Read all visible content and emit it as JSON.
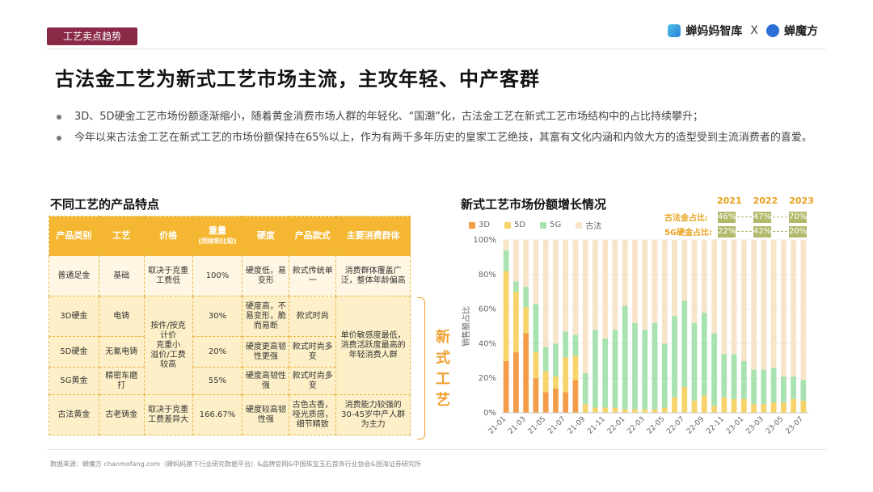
{
  "header": {
    "section_tag": "工艺卖点趋势",
    "brand_left": "蝉妈妈智库",
    "brand_sep": "X",
    "brand_right": "蝉魔方"
  },
  "title": "古法金工艺为新式工艺市场主流，主攻年轻、中产客群",
  "bullets": [
    "3D、5D硬金工艺市场份额逐渐缩小，随着黄金消费市场人群的年轻化、“国潮”化，古法金工艺在新式工艺市场结构中的占比持续攀升；",
    "今年以来古法金工艺在新式工艺的市场份额保持在65%以上，作为有两千多年历史的皇家工艺绝技，其富有文化内涵和内敛大方的造型受到主流消费者的喜爱。"
  ],
  "table": {
    "title": "不同工艺的产品特点",
    "headers": [
      "产品类别",
      "工艺",
      "价格",
      "重量",
      "(同体积比较)",
      "硬度",
      "产品款式",
      "主要消费群体"
    ],
    "rows": [
      [
        "普通足金",
        "基础",
        "取决于克重工费低",
        "100%",
        "硬度低，易变形",
        "款式传统单一",
        "消费群体覆盖广泛，整体年龄偏高"
      ],
      [
        "3D硬金",
        "电铸",
        "按件/按克计价\n克重小\n溢价/工费较高",
        "30%",
        "硬度高，不易变形，脆而易断",
        "款式时尚",
        "单价敏感度最低，消费活跃度最高的年轻消费人群"
      ],
      [
        "5D硬金",
        "无氰电铸",
        "",
        "20%",
        "硬度更高韧性更强",
        "款式时尚多变",
        ""
      ],
      [
        "5G黄金",
        "精密车磨打",
        "",
        "55%",
        "硬度高韧性强",
        "款式时尚多变",
        ""
      ],
      [
        "古法黄金",
        "古老铸金",
        "取决于克重工费差异大",
        "166.67%",
        "硬度较高韧性强",
        "古色古香，哑光质感，细节精致",
        "消费能力较强的30-45岁中产人群为主力"
      ]
    ],
    "bracket_label": "新式工艺"
  },
  "chart_section": {
    "title": "新式工艺市场份额增长情况",
    "years": [
      "2021",
      "2022",
      "2023"
    ],
    "gufa_label": "古法金占比:",
    "gufa_shares": [
      "46%",
      "47%",
      "70%"
    ],
    "g5_label": "5G硬金占比:",
    "g5_shares": [
      "22%",
      "42%",
      "20%"
    ]
  },
  "chart_data": {
    "type": "bar",
    "stacked": true,
    "title": "新式工艺市场份额增长情况",
    "ylabel": "销售额占比",
    "ylim": [
      0,
      100
    ],
    "yticks": [
      "0%",
      "20%",
      "40%",
      "60%",
      "80%",
      "100%"
    ],
    "xtick_labels": [
      "21-01",
      "21-03",
      "21-05",
      "21-07",
      "21-09",
      "21-11",
      "22-01",
      "22-03",
      "22-05",
      "22-07",
      "22-09",
      "22-11",
      "23-01",
      "23-03",
      "23-05",
      "23-07"
    ],
    "categories": [
      "21-01",
      "21-02",
      "21-03",
      "21-04",
      "21-05",
      "21-06",
      "21-07",
      "21-08",
      "21-09",
      "21-10",
      "21-11",
      "21-12",
      "22-01",
      "22-02",
      "22-03",
      "22-04",
      "22-05",
      "22-06",
      "22-07",
      "22-08",
      "22-09",
      "22-10",
      "22-11",
      "22-12",
      "23-01",
      "23-02",
      "23-03",
      "23-04",
      "23-05",
      "23-06",
      "23-07"
    ],
    "series": [
      {
        "name": "3D",
        "color": "#f39c4a",
        "values": [
          30,
          35,
          46,
          20,
          12,
          14,
          12,
          19,
          0,
          0,
          0,
          0,
          0,
          0,
          0,
          0,
          0,
          0,
          0,
          0,
          0,
          0,
          0,
          0,
          0,
          0,
          0,
          0,
          0,
          0,
          0
        ]
      },
      {
        "name": "5D",
        "color": "#f7d36b",
        "values": [
          52,
          35,
          15,
          15,
          12,
          7,
          20,
          14,
          5,
          3,
          3,
          3,
          2,
          2,
          2,
          2,
          3,
          9,
          15,
          7,
          10,
          4,
          9,
          8,
          8,
          5,
          5,
          6,
          6,
          8,
          7
        ]
      },
      {
        "name": "5G",
        "color": "#a7e2b0",
        "values": [
          12,
          6,
          12,
          28,
          14,
          19,
          15,
          12,
          18,
          45,
          40,
          45,
          60,
          50,
          46,
          50,
          37,
          47,
          50,
          45,
          48,
          42,
          25,
          26,
          22,
          20,
          20,
          20,
          15,
          13,
          12
        ]
      },
      {
        "name": "古法",
        "color": "#f8e4c6",
        "values": [
          6,
          24,
          27,
          37,
          62,
          60,
          53,
          55,
          77,
          52,
          57,
          52,
          38,
          48,
          52,
          48,
          60,
          44,
          35,
          48,
          42,
          54,
          66,
          66,
          70,
          75,
          75,
          74,
          79,
          79,
          81
        ]
      }
    ]
  },
  "source": "数据来源：蝉魔方 chanmofang.com（蝉妈妈旗下行业研究数据平台）&品牌官网&中国珠宝玉石首饰行业协会&国海证券研究所"
}
